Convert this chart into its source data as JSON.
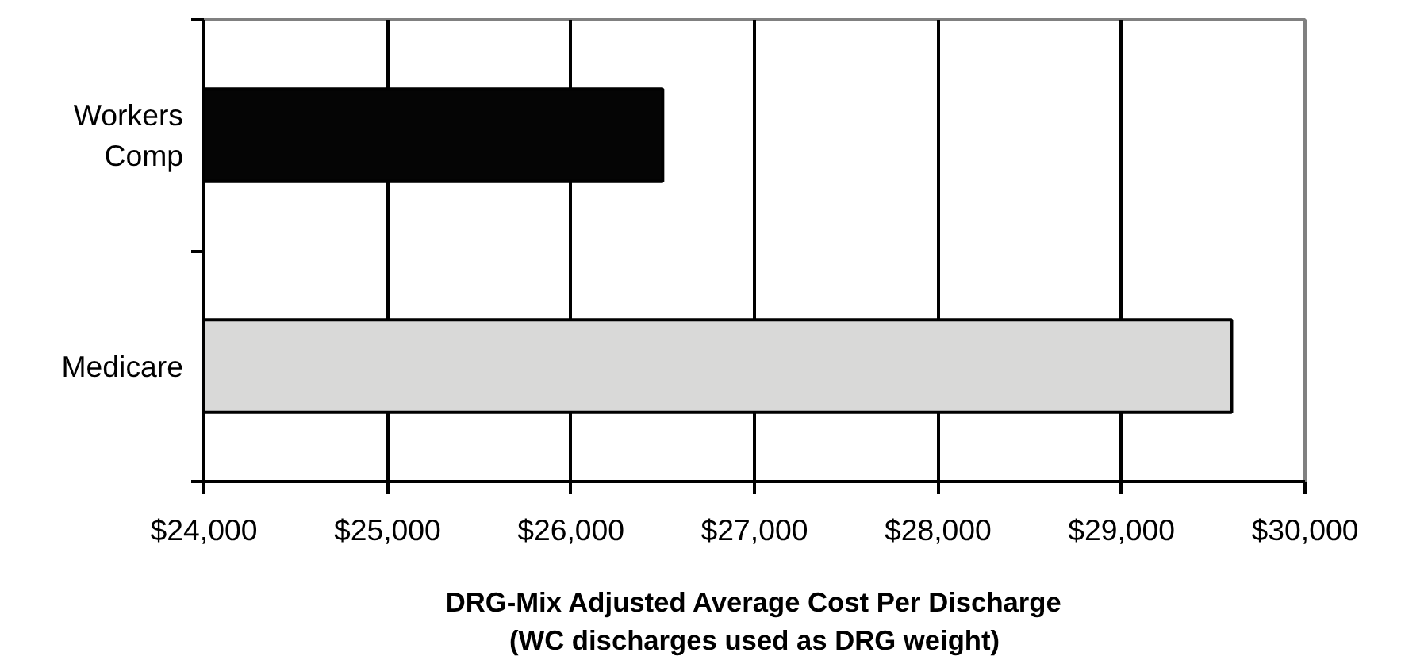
{
  "chart_data": {
    "type": "bar",
    "orientation": "horizontal",
    "categories": [
      "Workers Comp",
      "Medicare"
    ],
    "values": [
      26500,
      29600
    ],
    "colors": [
      "#050505",
      "#d9d9d8"
    ],
    "xlim": [
      24000,
      30000
    ],
    "xticks": [
      {
        "value": 24000,
        "label": "$24,000"
      },
      {
        "value": 25000,
        "label": "$25,000"
      },
      {
        "value": 26000,
        "label": "$26,000"
      },
      {
        "value": 27000,
        "label": "$27,000"
      },
      {
        "value": 28000,
        "label": "$28,000"
      },
      {
        "value": 29000,
        "label": "$29,000"
      },
      {
        "value": 30000,
        "label": "$30,000"
      }
    ],
    "xlabel": "DRG-Mix Adjusted Average Cost Per Discharge\n(WC discharges used as DRG weight)",
    "grid": "x"
  }
}
